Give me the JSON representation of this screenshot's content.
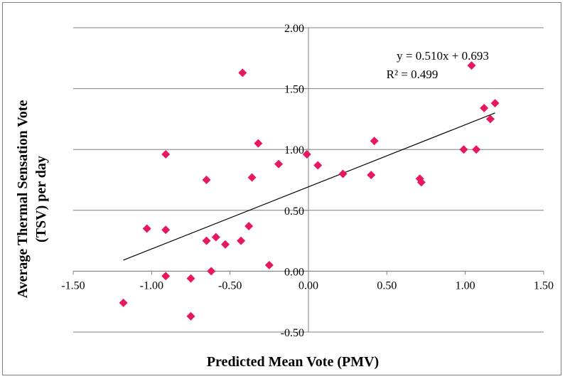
{
  "chart_data": {
    "type": "scatter",
    "xlabel": "Predicted Mean Vote (PMV)",
    "ylabel_lines": [
      "Average Thermal Sensation Vote",
      "(TSV)  per day"
    ],
    "xlim": [
      -1.5,
      1.5
    ],
    "ylim": [
      -0.5,
      2.0
    ],
    "x_ticks": [
      "-1.50",
      "-1.00",
      "-0.50",
      "0.00",
      "0.50",
      "1.00",
      "1.50"
    ],
    "y_ticks": [
      "-0.50",
      "0.00",
      "0.50",
      "1.00",
      "1.50",
      "2.00"
    ],
    "x_tick_values": [
      -1.5,
      -1.0,
      -0.5,
      0.0,
      0.5,
      1.0,
      1.5
    ],
    "y_tick_values": [
      -0.5,
      0.0,
      0.5,
      1.0,
      1.5,
      2.0
    ],
    "grid": "horizontal",
    "marker": "diamond",
    "marker_color": "#e8185f",
    "points": [
      {
        "x": -1.18,
        "y": -0.26
      },
      {
        "x": -1.03,
        "y": 0.35
      },
      {
        "x": -0.91,
        "y": 0.96
      },
      {
        "x": -0.91,
        "y": 0.34
      },
      {
        "x": -0.91,
        "y": -0.04
      },
      {
        "x": -0.75,
        "y": -0.06
      },
      {
        "x": -0.75,
        "y": -0.37
      },
      {
        "x": -0.65,
        "y": 0.75
      },
      {
        "x": -0.65,
        "y": 0.25
      },
      {
        "x": -0.62,
        "y": 0.0
      },
      {
        "x": -0.59,
        "y": 0.28
      },
      {
        "x": -0.53,
        "y": 0.22
      },
      {
        "x": -0.43,
        "y": 0.25
      },
      {
        "x": -0.42,
        "y": 1.63
      },
      {
        "x": -0.38,
        "y": 0.37
      },
      {
        "x": -0.36,
        "y": 0.77
      },
      {
        "x": -0.32,
        "y": 1.05
      },
      {
        "x": -0.25,
        "y": 0.05
      },
      {
        "x": -0.19,
        "y": 0.88
      },
      {
        "x": -0.01,
        "y": 0.96
      },
      {
        "x": 0.06,
        "y": 0.87
      },
      {
        "x": 0.22,
        "y": 0.8
      },
      {
        "x": 0.4,
        "y": 0.79
      },
      {
        "x": 0.42,
        "y": 1.07
      },
      {
        "x": 0.71,
        "y": 0.76
      },
      {
        "x": 0.72,
        "y": 0.73
      },
      {
        "x": 0.99,
        "y": 1.0
      },
      {
        "x": 1.04,
        "y": 1.69
      },
      {
        "x": 1.07,
        "y": 1.0
      },
      {
        "x": 1.12,
        "y": 1.34
      },
      {
        "x": 1.16,
        "y": 1.25
      },
      {
        "x": 1.19,
        "y": 1.38
      }
    ],
    "trendline": {
      "slope": 0.51,
      "intercept": 0.693,
      "x_range": [
        -1.18,
        1.19
      ],
      "color": "#000000"
    },
    "annotations": {
      "equation": "y = 0.510x + 0.693",
      "r_squared": "R² = 0.499"
    }
  }
}
